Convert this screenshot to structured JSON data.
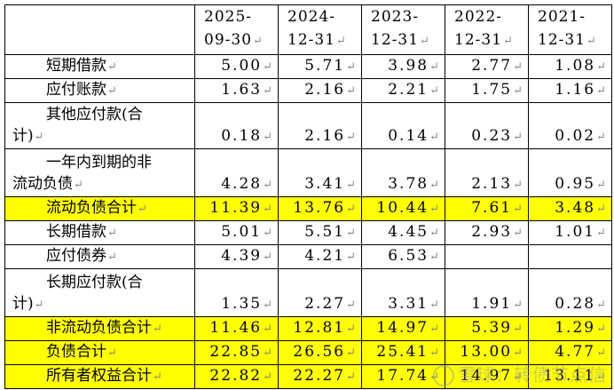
{
  "columns": [
    "2025-\n09-30",
    "2024-\n12-31",
    "2023-\n12-31",
    "2022-\n12-31",
    "2021-\n12-31"
  ],
  "header_cols": [
    {
      "line1": "2025-",
      "line2": "09-30"
    },
    {
      "line1": "2024-",
      "line2": "12-31"
    },
    {
      "line1": "2023-",
      "line2": "12-31"
    },
    {
      "line1": "2022-",
      "line2": "12-31"
    },
    {
      "line1": "2021-",
      "line2": "12-31"
    }
  ],
  "rows": [
    {
      "label1": "短期借款",
      "values": [
        "5.00",
        "5.71",
        "3.98",
        "2.77",
        "1.08"
      ]
    },
    {
      "label1": "应付账款",
      "values": [
        "1.63",
        "2.16",
        "2.21",
        "1.75",
        "1.16"
      ]
    },
    {
      "label1": "其他应付款(合",
      "label2": "计)",
      "values": [
        "0.18",
        "2.16",
        "0.14",
        "0.23",
        "0.02"
      ]
    },
    {
      "label1": "一年内到期的非",
      "label2": "流动负债",
      "values": [
        "4.28",
        "3.41",
        "3.78",
        "2.13",
        "0.95"
      ]
    },
    {
      "label1": "流动负债合计",
      "highlight": true,
      "values": [
        "11.39",
        "13.76",
        "10.44",
        "7.61",
        "3.48"
      ]
    },
    {
      "label1": "长期借款",
      "values": [
        "5.01",
        "5.51",
        "4.45",
        "2.93",
        "1.01"
      ]
    },
    {
      "label1": "应付债券",
      "values": [
        "4.39",
        "4.21",
        "6.53",
        "",
        ""
      ]
    },
    {
      "label1": "长期应付款(合",
      "label2": "计)",
      "values": [
        "1.35",
        "2.27",
        "3.31",
        "1.91",
        "0.28"
      ]
    },
    {
      "label1": "非流动负债合计",
      "highlight": true,
      "values": [
        "11.46",
        "12.81",
        "14.97",
        "5.39",
        "1.29"
      ]
    },
    {
      "label1": "负债合计",
      "highlight": true,
      "values": [
        "22.85",
        "26.56",
        "25.41",
        "13.00",
        "4.77"
      ]
    },
    {
      "label1": "所有者权益合计",
      "highlight": true,
      "values": [
        "22.82",
        "22.27",
        "17.74",
        "14.97",
        "13.11"
      ]
    }
  ],
  "para_mark": "↵",
  "watermark": "雪球：转债节点信"
}
